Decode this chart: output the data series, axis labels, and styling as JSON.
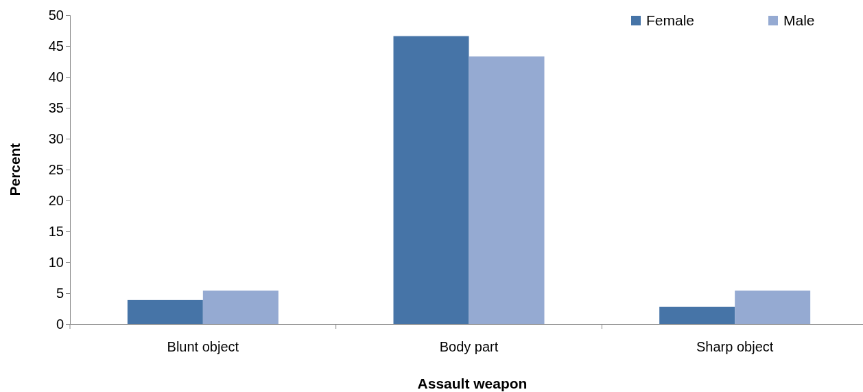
{
  "chart_data": {
    "type": "bar",
    "xlabel": "Assault weapon",
    "ylabel": "Percent",
    "categories": [
      "Blunt object",
      "Body part",
      "Sharp object"
    ],
    "series": [
      {
        "name": "Female",
        "color": "#4674a7",
        "values": [
          3.9,
          46.6,
          2.8
        ]
      },
      {
        "name": "Male",
        "color": "#95aad2",
        "values": [
          5.4,
          43.3,
          5.4
        ]
      }
    ],
    "ylim": [
      0,
      50
    ],
    "yticks": [
      0,
      5,
      10,
      15,
      20,
      25,
      30,
      35,
      40,
      45,
      50
    ],
    "grid": false,
    "legend": "top right"
  }
}
